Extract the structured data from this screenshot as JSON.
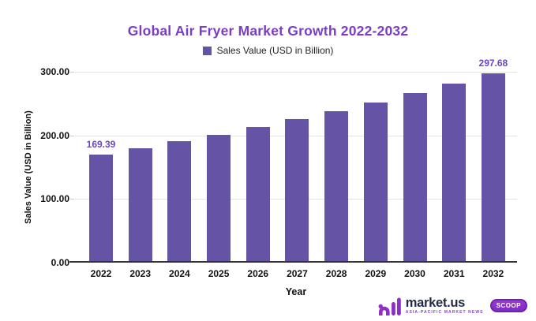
{
  "title": {
    "text": "Global Air Fryer Market Growth 2022-2032",
    "color": "#7A3EC6"
  },
  "legend": {
    "label": "Sales Value (USD in Billion)",
    "swatch_color": "#6553A5"
  },
  "axes": {
    "y_label": "Sales Value (USD in Billion)",
    "x_label": "Year",
    "y_ticks": [
      "300.00",
      "200.00",
      "100.00",
      "0.00"
    ]
  },
  "chart_data": {
    "type": "bar",
    "title": "Global Air Fryer Market Growth 2022-2032",
    "series_name": "Sales Value (USD in Billion)",
    "categories": [
      "2022",
      "2023",
      "2024",
      "2025",
      "2026",
      "2027",
      "2028",
      "2029",
      "2030",
      "2031",
      "2032"
    ],
    "values": [
      169.39,
      179.2,
      189.6,
      200.6,
      212.2,
      224.5,
      237.6,
      251.3,
      265.9,
      281.3,
      297.68
    ],
    "point_labels": [
      {
        "category": "2022",
        "text": "169.39"
      },
      {
        "category": "2032",
        "text": "297.68"
      }
    ],
    "xlabel": "Year",
    "ylabel": "Sales Value (USD in Billion)",
    "ylim": [
      0,
      300
    ],
    "ytick_step": 100,
    "grid": true,
    "legend_position": "top",
    "bar_color": "#6553A5",
    "label_color": "#6B46C4"
  },
  "footer": {
    "brand": "market.us",
    "tagline": "ASIA-PACIFIC MARKET NEWS",
    "badge": "SCOOP"
  }
}
